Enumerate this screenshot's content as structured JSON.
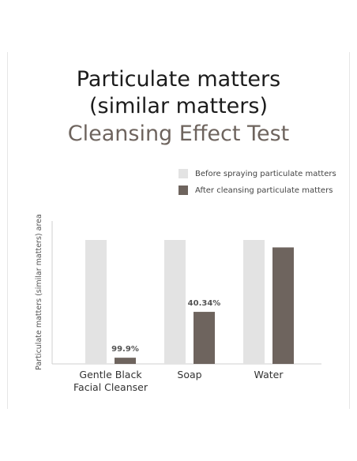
{
  "title_lines": [
    "Particulate matters",
    "(similar matters)",
    "Cleansing Effect Test"
  ],
  "colors": {
    "before": "#e3e3e3",
    "after": "#6e645e",
    "accent_title": "#6e645e"
  },
  "chart_data": {
    "type": "bar",
    "categories": [
      "Gentle Black\nFacial Cleanser",
      "Soap",
      "Water"
    ],
    "series": [
      {
        "name": "Before spraying particulate matters",
        "values": [
          100,
          100,
          100
        ]
      },
      {
        "name": "After cleansing particulate matters",
        "values": [
          5,
          42,
          94
        ]
      }
    ],
    "data_labels": [
      "99.9%",
      "40.34%",
      ""
    ],
    "ylabel": "Particulate matters (similar matters) area",
    "ylim": [
      0,
      100
    ],
    "legend": "top-right",
    "grid": false
  }
}
